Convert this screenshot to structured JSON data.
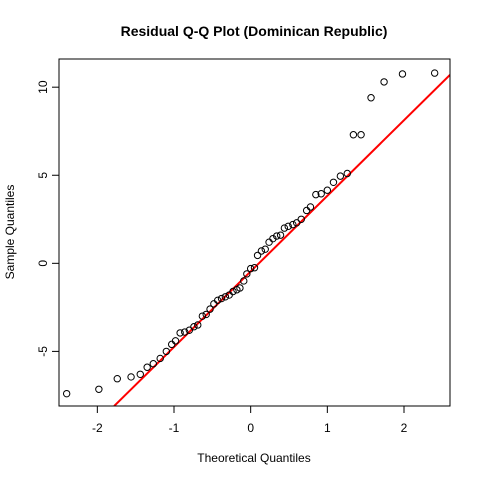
{
  "chart_data": {
    "type": "scatter",
    "title": "Residual Q-Q Plot (Dominican Republic)",
    "xlabel": "Theoretical Quantiles",
    "ylabel": "Sample Quantiles",
    "xlim": [
      -2.5,
      2.6
    ],
    "ylim": [
      -8.1,
      11.6
    ],
    "x_ticks": [
      -2,
      -1,
      0,
      1,
      2
    ],
    "y_ticks": [
      -5,
      0,
      5,
      10
    ],
    "grid": false,
    "legend": "none",
    "point_color": "#000000",
    "series": [
      {
        "values": [
          [
            -2.4,
            -7.4
          ],
          [
            -1.98,
            -7.15
          ],
          [
            -1.74,
            -6.55
          ],
          [
            -1.56,
            -6.45
          ],
          [
            -1.44,
            -6.3
          ],
          [
            -1.35,
            -5.9
          ],
          [
            -1.27,
            -5.7
          ],
          [
            -1.18,
            -5.4
          ],
          [
            -1.1,
            -5.0
          ],
          [
            -1.03,
            -4.6
          ],
          [
            -0.98,
            -4.4
          ],
          [
            -0.92,
            -3.95
          ],
          [
            -0.86,
            -3.9
          ],
          [
            -0.8,
            -3.8
          ],
          [
            -0.74,
            -3.6
          ],
          [
            -0.69,
            -3.5
          ],
          [
            -0.63,
            -3.0
          ],
          [
            -0.58,
            -2.9
          ],
          [
            -0.53,
            -2.6
          ],
          [
            -0.48,
            -2.3
          ],
          [
            -0.43,
            -2.1
          ],
          [
            -0.38,
            -2.0
          ],
          [
            -0.33,
            -1.9
          ],
          [
            -0.28,
            -1.8
          ],
          [
            -0.23,
            -1.6
          ],
          [
            -0.18,
            -1.5
          ],
          [
            -0.14,
            -1.4
          ],
          [
            -0.09,
            -1.0
          ],
          [
            -0.05,
            -0.6
          ],
          [
            0.0,
            -0.3
          ],
          [
            0.05,
            -0.25
          ],
          [
            0.09,
            0.45
          ],
          [
            0.14,
            0.7
          ],
          [
            0.19,
            0.8
          ],
          [
            0.24,
            1.2
          ],
          [
            0.29,
            1.4
          ],
          [
            0.34,
            1.55
          ],
          [
            0.39,
            1.6
          ],
          [
            0.44,
            2.0
          ],
          [
            0.49,
            2.1
          ],
          [
            0.55,
            2.2
          ],
          [
            0.6,
            2.3
          ],
          [
            0.66,
            2.5
          ],
          [
            0.73,
            3.0
          ],
          [
            0.78,
            3.2
          ],
          [
            0.85,
            3.9
          ],
          [
            0.92,
            3.95
          ],
          [
            1.0,
            4.15
          ],
          [
            1.08,
            4.6
          ],
          [
            1.17,
            4.95
          ],
          [
            1.26,
            5.1
          ],
          [
            1.34,
            7.3
          ],
          [
            1.44,
            7.3
          ],
          [
            1.57,
            9.4
          ],
          [
            1.74,
            10.3
          ],
          [
            1.98,
            10.75
          ],
          [
            2.4,
            10.8
          ]
        ]
      }
    ],
    "reference_line": {
      "color": "#ff0000",
      "x": [
        -1.78,
        2.6
      ],
      "y": [
        -8.1,
        10.7
      ]
    }
  }
}
